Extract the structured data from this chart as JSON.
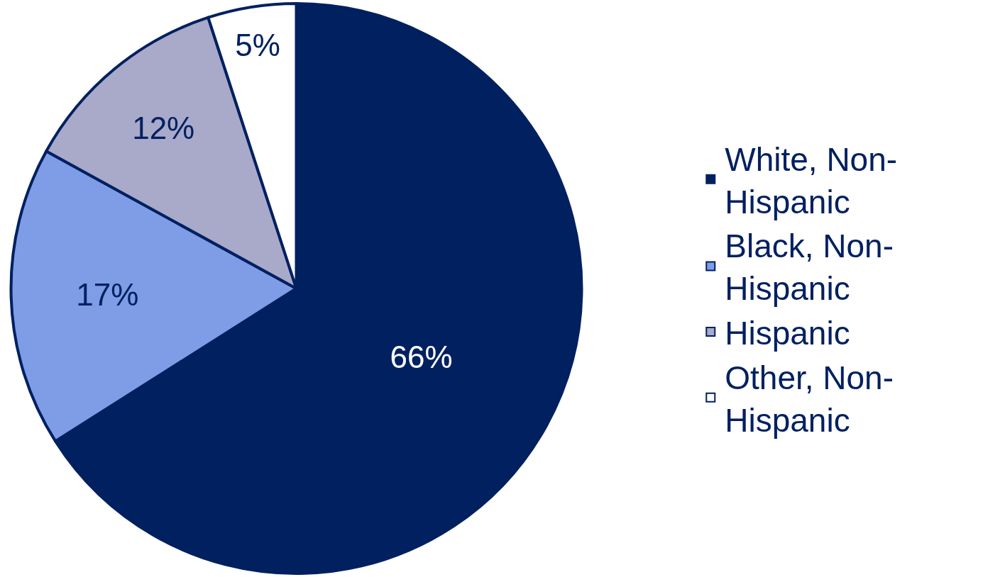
{
  "chart_data": {
    "type": "pie",
    "categories": [
      "White, Non-Hispanic",
      "Black, Non-Hispanic",
      "Hispanic",
      "Other, Non-Hispanic"
    ],
    "values": [
      66,
      17,
      12,
      5
    ],
    "colors": [
      "#002060",
      "#7f9de6",
      "#a9a9c9",
      "#ffffff"
    ],
    "value_labels": [
      "66%",
      "17%",
      "12%",
      "5%"
    ],
    "legend": "right"
  }
}
